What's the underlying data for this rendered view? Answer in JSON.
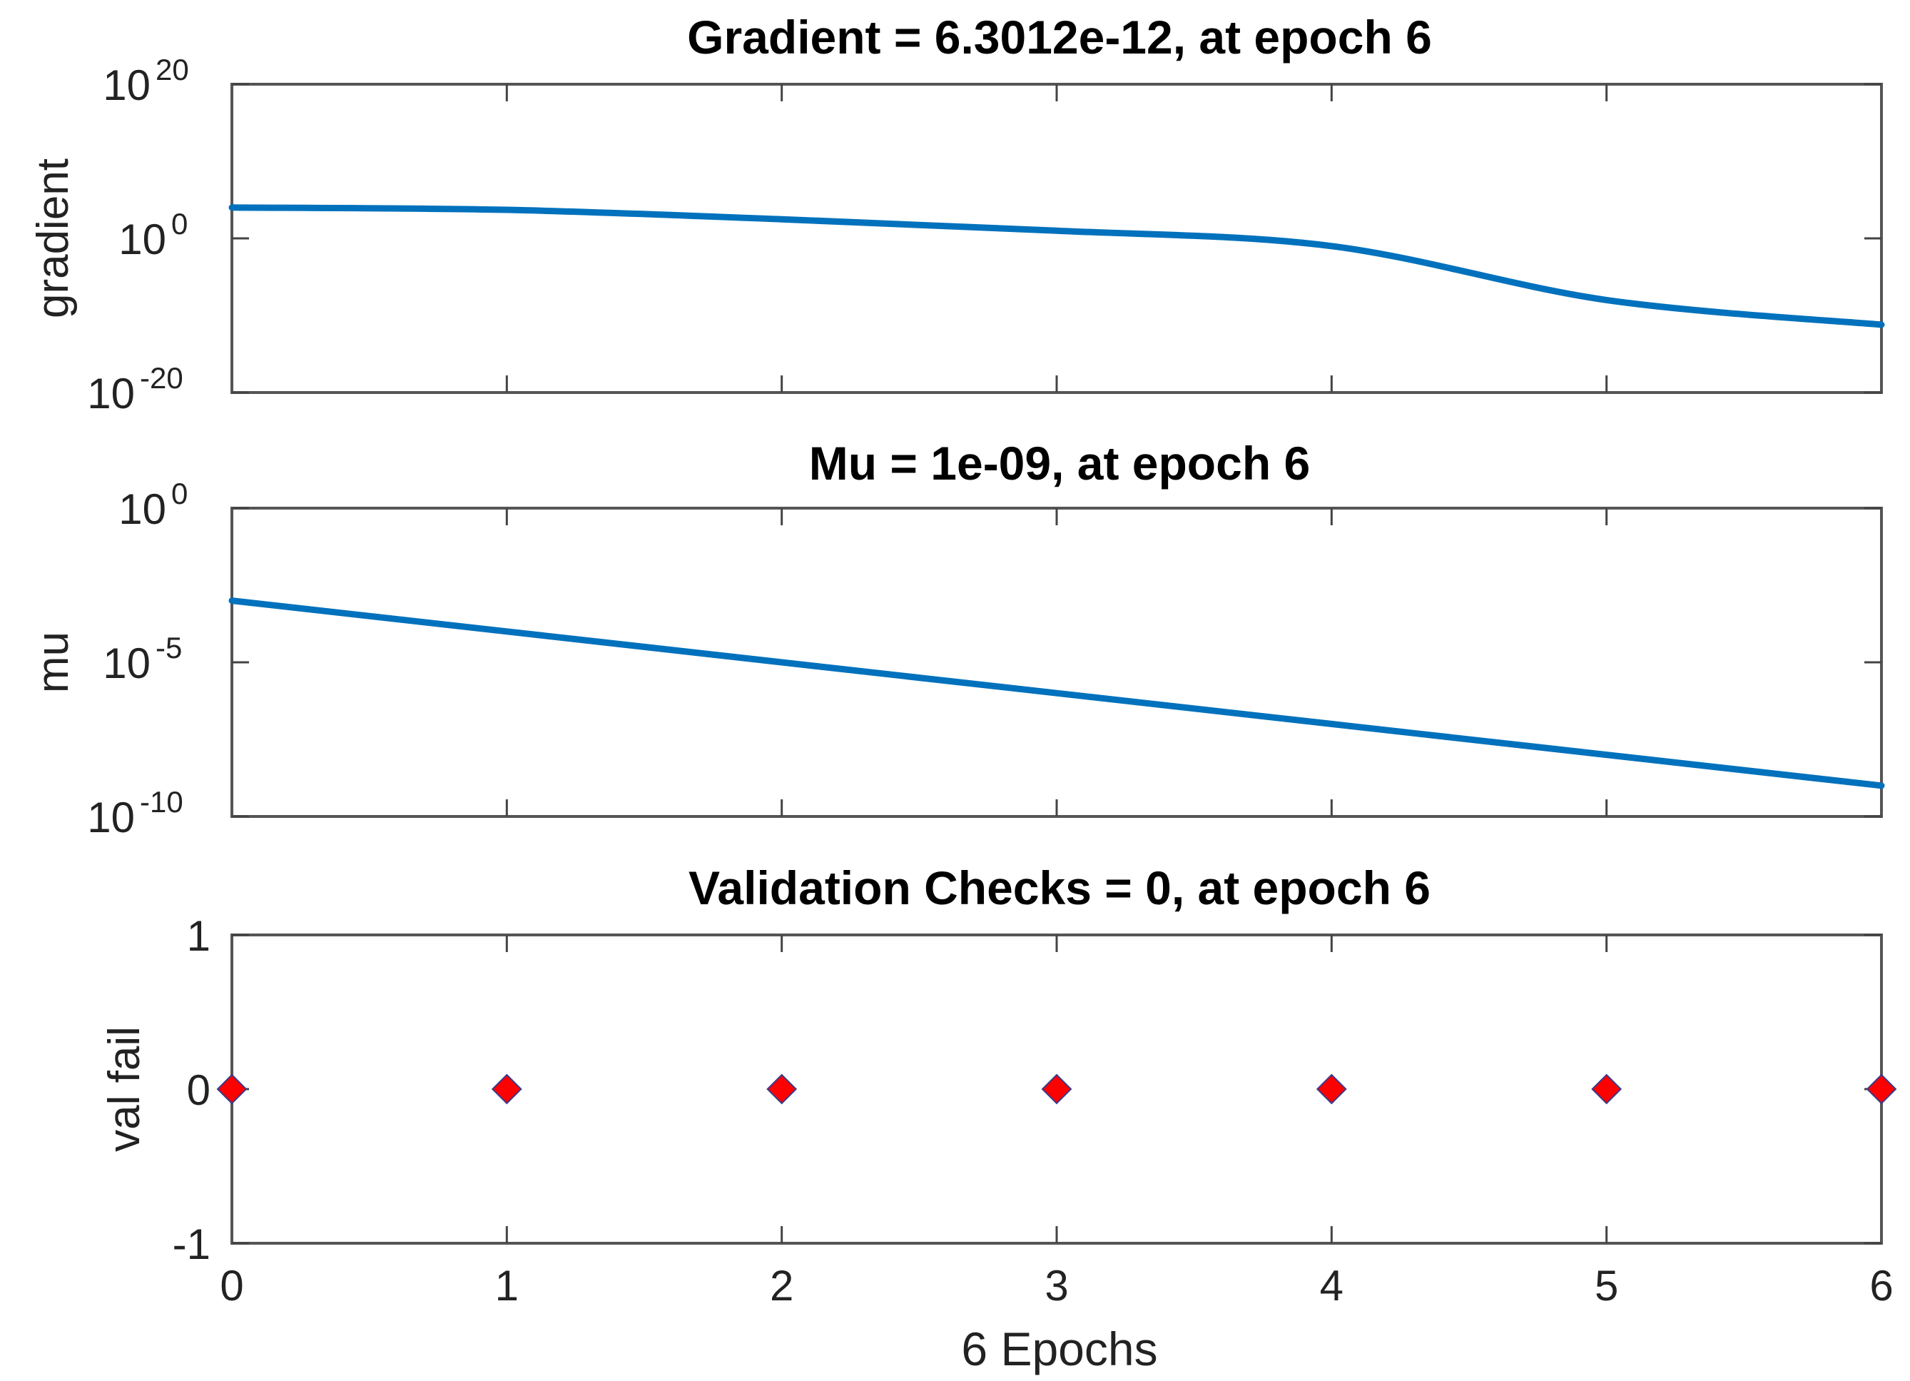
{
  "chart_data": [
    {
      "type": "line",
      "title": "Gradient = 6.3012e-12, at epoch 6",
      "ylabel": "gradient",
      "yscale": "log",
      "ylim": [
        1e-20,
        1e+20
      ],
      "yticks": [
        {
          "base": "10",
          "exp": "20"
        },
        {
          "base": "10",
          "exp": "0"
        },
        {
          "base": "10",
          "exp": "-20"
        }
      ],
      "series": [
        {
          "color": "#0071bc",
          "x": [
            0,
            1,
            2,
            3,
            4,
            5,
            6
          ],
          "y": [
            10000.0,
            5000.0,
            300.0,
            10.0,
            0.1,
            1e-08,
            6.3012e-12
          ]
        }
      ]
    },
    {
      "type": "line",
      "title": "Mu = 1e-09, at epoch 6",
      "ylabel": "mu",
      "yscale": "log",
      "ylim": [
        1e-10,
        1
      ],
      "yticks": [
        {
          "base": "10",
          "exp": "0"
        },
        {
          "base": "10",
          "exp": "-5"
        },
        {
          "base": "10",
          "exp": "-10"
        }
      ],
      "series": [
        {
          "color": "#0071bc",
          "x": [
            0,
            1,
            2,
            3,
            4,
            5,
            6
          ],
          "y": [
            0.001,
            0.0001,
            1e-05,
            1e-06,
            1e-07,
            1e-08,
            1e-09
          ]
        }
      ]
    },
    {
      "type": "scatter",
      "title": "Validation Checks = 0, at epoch 6",
      "ylabel": "val fail",
      "xlabel": "6 Epochs",
      "yscale": "linear",
      "ylim": [
        -1,
        1
      ],
      "yticks": [
        {
          "base": "1",
          "exp": ""
        },
        {
          "base": "0",
          "exp": ""
        },
        {
          "base": "-1",
          "exp": ""
        }
      ],
      "series": [
        {
          "color": "#ff0000",
          "marker": "diamond",
          "x": [
            0,
            1,
            2,
            3,
            4,
            5,
            6
          ],
          "y": [
            0,
            0,
            0,
            0,
            0,
            0,
            0
          ]
        }
      ]
    }
  ],
  "xaxis": {
    "xlim": [
      0,
      6
    ],
    "tick_labels": [
      "0",
      "1",
      "2",
      "3",
      "4",
      "5",
      "6"
    ]
  }
}
